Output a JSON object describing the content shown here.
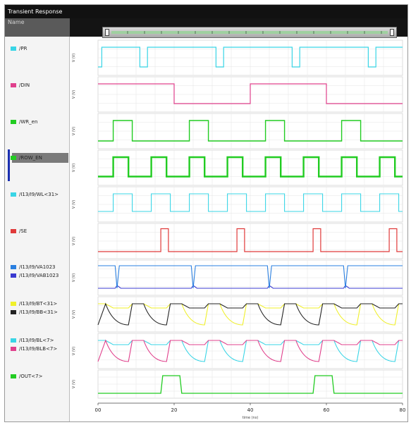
{
  "window": {
    "title": "Transient Response",
    "name_header": "Name"
  },
  "signals": [
    {
      "label": "/PR",
      "color": "#39d5e6"
    },
    {
      "label": "/DIN",
      "color": "#e0408c"
    },
    {
      "label": "/WR_en",
      "color": "#22cc22"
    },
    {
      "label": "/ROW_EN",
      "color": "#22cc22",
      "selected": true
    },
    {
      "label": "/I13/I9/WL<31>",
      "color": "#39d5e6"
    },
    {
      "label": "/SE",
      "color": "#e03a3a"
    },
    {
      "label": "/I13/I9/VA1023",
      "color": "#2a7fe0"
    },
    {
      "label": "/I13/I9/VAB1023",
      "color": "#3a3ad0"
    },
    {
      "label": "/I13/I9/BT<31>",
      "color": "#f0f02a"
    },
    {
      "label": "/I13/I9/BB<31>",
      "color": "#222222"
    },
    {
      "label": "/I13/I9/BL<7>",
      "color": "#39d5e6"
    },
    {
      "label": "/I13/I9/BLB<7>",
      "color": "#e0408c"
    },
    {
      "label": "/OUT<7>",
      "color": "#22cc22"
    }
  ],
  "x_axis": {
    "ticks": [
      "00",
      "20",
      "40",
      "60",
      "80"
    ],
    "label": "time (ns)"
  },
  "y_axis_label": "V (V)"
}
